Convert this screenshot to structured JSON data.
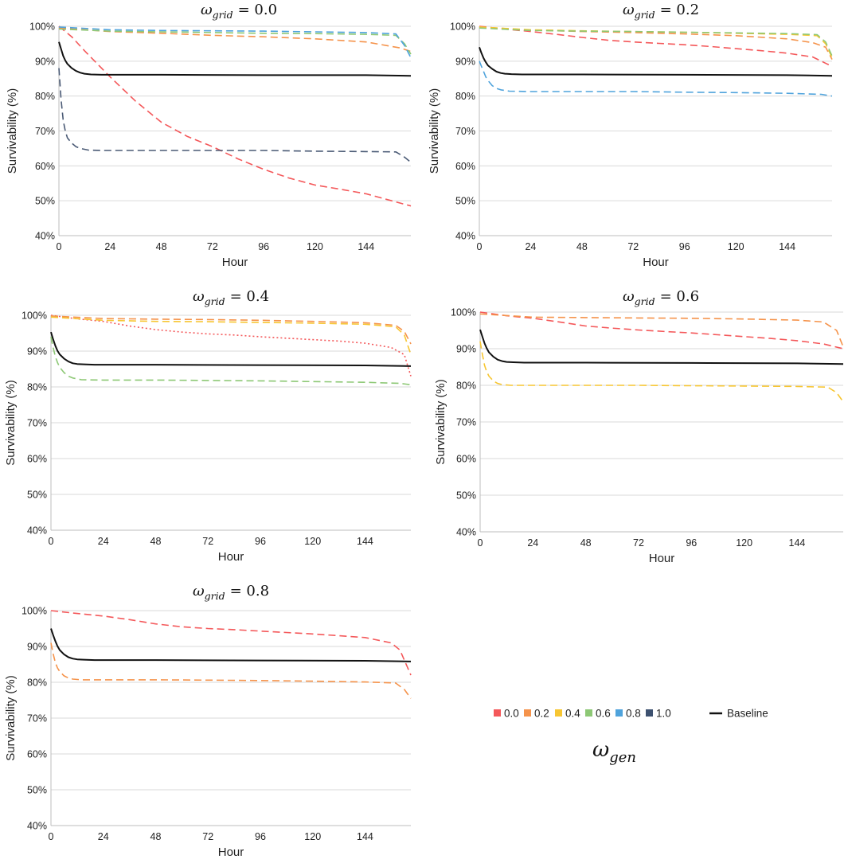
{
  "chart_data": [
    {
      "type": "line",
      "title": {
        "symbol": "ω",
        "subscript": "grid",
        "value": "= 0.0"
      },
      "xlabel": "Hour",
      "ylabel": "Survivability (%)",
      "xticks": [
        0,
        24,
        48,
        72,
        96,
        120,
        144
      ],
      "xlim": [
        0,
        165
      ],
      "yticks": [
        "40%",
        "50%",
        "60%",
        "70%",
        "80%",
        "90%",
        "100%"
      ],
      "ylim": [
        40,
        100
      ],
      "series": [
        {
          "name": "0.0",
          "color": "#f4585a",
          "style": "dashed",
          "x": [
            0,
            6,
            12,
            24,
            36,
            48,
            60,
            72,
            84,
            96,
            108,
            120,
            132,
            144,
            156,
            165
          ],
          "y": [
            100,
            97,
            93,
            85.5,
            78.5,
            72.5,
            68.5,
            65.5,
            62,
            59,
            56.5,
            54.5,
            53.3,
            52,
            50,
            48.5
          ]
        },
        {
          "name": "0.2",
          "color": "#f5934b",
          "style": "dashed",
          "x": [
            0,
            24,
            48,
            72,
            96,
            120,
            144,
            160,
            165
          ],
          "y": [
            99.5,
            98.5,
            98,
            97.4,
            97,
            96.4,
            95.5,
            93.8,
            92.8
          ]
        },
        {
          "name": "0.6",
          "color": "#8dc875",
          "style": "dashed",
          "x": [
            0,
            24,
            48,
            72,
            96,
            120,
            144,
            158,
            162,
            165
          ],
          "y": [
            99.2,
            98.6,
            98.4,
            98.2,
            98,
            97.9,
            97.7,
            97.4,
            95,
            92
          ]
        },
        {
          "name": "0.8",
          "color": "#4fa3dc",
          "style": "dashed",
          "x": [
            0,
            24,
            48,
            72,
            96,
            120,
            144,
            158,
            162,
            165
          ],
          "y": [
            99.8,
            99,
            98.8,
            98.7,
            98.6,
            98.4,
            98.2,
            97.8,
            94.5,
            91
          ]
        },
        {
          "name": "1.0",
          "color": "#4a5a75",
          "style": "dashed",
          "x": [
            0,
            1,
            2,
            3,
            4,
            6,
            8,
            10,
            14,
            20,
            48,
            96,
            120,
            144,
            158,
            162,
            165
          ],
          "y": [
            88,
            79,
            73,
            70,
            68,
            66.5,
            65.5,
            65,
            64.5,
            64.4,
            64.4,
            64.4,
            64.2,
            64.1,
            64,
            62.5,
            61
          ]
        },
        {
          "name": "Baseline",
          "color": "#111111",
          "style": "solid",
          "x": [
            0,
            1,
            2,
            3,
            4,
            6,
            8,
            10,
            12,
            15,
            20,
            48,
            96,
            144,
            165
          ],
          "y": [
            95.5,
            93.5,
            91.5,
            90.2,
            89.2,
            88,
            87.2,
            86.7,
            86.4,
            86.2,
            86.1,
            86.1,
            86,
            86,
            85.8
          ]
        }
      ]
    },
    {
      "type": "line",
      "title": {
        "symbol": "ω",
        "subscript": "grid",
        "value": "= 0.2"
      },
      "xlabel": "Hour",
      "ylabel": "Survivability (%)",
      "xticks": [
        0,
        24,
        48,
        72,
        96,
        120,
        144
      ],
      "xlim": [
        0,
        165
      ],
      "yticks": [
        "40%",
        "50%",
        "60%",
        "70%",
        "80%",
        "90%",
        "100%"
      ],
      "ylim": [
        40,
        100
      ],
      "series": [
        {
          "name": "0.0",
          "color": "#f4585a",
          "style": "dashed",
          "x": [
            0,
            12,
            24,
            36,
            48,
            60,
            72,
            84,
            96,
            108,
            120,
            132,
            144,
            156,
            165
          ],
          "y": [
            100,
            99.2,
            98.5,
            97.7,
            96.8,
            96,
            95.5,
            95.1,
            94.7,
            94.2,
            93.6,
            93,
            92.3,
            91.2,
            88.5
          ]
        },
        {
          "name": "0.2",
          "color": "#f5934b",
          "style": "dashed",
          "x": [
            0,
            24,
            48,
            72,
            96,
            120,
            144,
            156,
            162,
            165
          ],
          "y": [
            99.8,
            98.9,
            98.5,
            98.2,
            97.8,
            97.3,
            96.4,
            95.3,
            94,
            90.5
          ]
        },
        {
          "name": "0.4",
          "color": "#f7c632",
          "style": "dashed",
          "x": [
            0,
            24,
            48,
            72,
            96,
            120,
            144,
            158,
            162,
            165
          ],
          "y": [
            99.8,
            99,
            98.7,
            98.5,
            98.3,
            98,
            97.7,
            97.3,
            95,
            91
          ]
        },
        {
          "name": "0.6",
          "color": "#8dc875",
          "style": "dashed",
          "x": [
            0,
            24,
            48,
            72,
            96,
            120,
            144,
            158,
            162,
            165
          ],
          "y": [
            99.5,
            98.8,
            98.6,
            98.5,
            98.3,
            98.1,
            97.9,
            97.6,
            95.5,
            91.5
          ]
        },
        {
          "name": "0.8",
          "color": "#4fa3dc",
          "style": "dashed",
          "x": [
            0,
            1,
            2,
            3,
            4,
            6,
            8,
            10,
            14,
            24,
            48,
            72,
            96,
            120,
            144,
            160,
            165
          ],
          "y": [
            90,
            88.5,
            87,
            85.5,
            84.5,
            83,
            82.2,
            81.8,
            81.4,
            81.3,
            81.3,
            81.3,
            81.1,
            81,
            80.8,
            80.5,
            80
          ]
        },
        {
          "name": "Baseline",
          "color": "#111111",
          "style": "solid",
          "x": [
            0,
            1,
            2,
            3,
            4,
            6,
            8,
            10,
            12,
            15,
            20,
            48,
            96,
            144,
            165
          ],
          "y": [
            94,
            92.3,
            90.8,
            89.7,
            88.8,
            87.8,
            87,
            86.6,
            86.4,
            86.3,
            86.2,
            86.2,
            86.1,
            86,
            85.8
          ]
        }
      ]
    },
    {
      "type": "line",
      "title": {
        "symbol": "ω",
        "subscript": "grid",
        "value": "= 0.4"
      },
      "xlabel": "Hour",
      "ylabel": "Survivability (%)",
      "xticks": [
        0,
        24,
        48,
        72,
        96,
        120,
        144
      ],
      "xlim": [
        0,
        165
      ],
      "yticks": [
        "40%",
        "50%",
        "60%",
        "70%",
        "80%",
        "90%",
        "100%"
      ],
      "ylim": [
        40,
        100
      ],
      "series": [
        {
          "name": "0.0",
          "color": "#f4585a",
          "style": "dotted",
          "x": [
            0,
            12,
            24,
            36,
            48,
            60,
            72,
            84,
            96,
            108,
            120,
            132,
            144,
            156,
            162,
            165
          ],
          "y": [
            100,
            99,
            98.3,
            97,
            96,
            95.3,
            94.8,
            94.5,
            94,
            93.6,
            93.2,
            92.8,
            92.2,
            91,
            89,
            83
          ]
        },
        {
          "name": "0.2",
          "color": "#f5934b",
          "style": "dashed",
          "x": [
            0,
            24,
            48,
            72,
            96,
            120,
            144,
            158,
            162,
            165
          ],
          "y": [
            99.8,
            99.1,
            98.9,
            98.8,
            98.6,
            98.3,
            97.9,
            97.2,
            95.5,
            92
          ]
        },
        {
          "name": "0.4",
          "color": "#f7c632",
          "style": "dashed",
          "x": [
            0,
            24,
            48,
            72,
            96,
            120,
            144,
            158,
            162,
            165
          ],
          "y": [
            99.5,
            98.6,
            98.3,
            98.2,
            98,
            97.8,
            97.5,
            96.8,
            94.5,
            89
          ]
        },
        {
          "name": "0.6",
          "color": "#8dc875",
          "style": "dashed",
          "x": [
            0,
            1,
            2,
            3,
            4,
            6,
            8,
            10,
            14,
            24,
            48,
            72,
            96,
            120,
            144,
            160,
            165
          ],
          "y": [
            94,
            91,
            88.5,
            86.8,
            85.5,
            84,
            83,
            82.5,
            82,
            81.9,
            81.9,
            81.8,
            81.7,
            81.5,
            81.3,
            81,
            80.6
          ]
        },
        {
          "name": "Baseline",
          "color": "#111111",
          "style": "solid",
          "x": [
            0,
            1,
            2,
            3,
            4,
            6,
            8,
            10,
            12,
            15,
            20,
            48,
            96,
            144,
            165
          ],
          "y": [
            95.3,
            93.3,
            91.5,
            90.1,
            89.1,
            87.9,
            87.1,
            86.6,
            86.4,
            86.3,
            86.2,
            86.2,
            86.1,
            86,
            85.8
          ]
        }
      ]
    },
    {
      "type": "line",
      "title": {
        "symbol": "ω",
        "subscript": "grid",
        "value": "= 0.6"
      },
      "xlabel": "Hour",
      "ylabel": "Survivability (%)",
      "xticks": [
        0,
        24,
        48,
        72,
        96,
        120,
        144
      ],
      "xlim": [
        0,
        165
      ],
      "yticks": [
        "40%",
        "50%",
        "60%",
        "70%",
        "80%",
        "90%",
        "100%"
      ],
      "ylim": [
        40,
        100
      ],
      "series": [
        {
          "name": "0.0",
          "color": "#f4585a",
          "style": "dashed",
          "x": [
            0,
            12,
            24,
            36,
            48,
            60,
            72,
            84,
            96,
            108,
            120,
            132,
            144,
            156,
            165
          ],
          "y": [
            100,
            99,
            98.3,
            97.3,
            96.2,
            95.6,
            95.1,
            94.7,
            94.3,
            93.8,
            93.3,
            92.8,
            92.2,
            91.3,
            90
          ]
        },
        {
          "name": "0.2",
          "color": "#f5934b",
          "style": "dashed",
          "x": [
            0,
            24,
            48,
            72,
            96,
            120,
            144,
            156,
            162,
            165
          ],
          "y": [
            99.5,
            98.6,
            98.5,
            98.4,
            98.3,
            98.1,
            97.8,
            97.3,
            95,
            90.5
          ]
        },
        {
          "name": "0.4",
          "color": "#f7c632",
          "style": "dashed",
          "x": [
            0,
            1,
            2,
            3,
            4,
            6,
            8,
            10,
            14,
            24,
            48,
            72,
            96,
            120,
            144,
            158,
            162,
            165
          ],
          "y": [
            92,
            88.5,
            85.5,
            83.7,
            82.5,
            81.2,
            80.5,
            80.2,
            80,
            80,
            80,
            80,
            79.9,
            79.8,
            79.7,
            79.5,
            78,
            75.5
          ]
        },
        {
          "name": "Baseline",
          "color": "#111111",
          "style": "solid",
          "x": [
            0,
            1,
            2,
            3,
            4,
            6,
            8,
            10,
            12,
            15,
            20,
            48,
            96,
            144,
            165
          ],
          "y": [
            95.2,
            93.3,
            91.5,
            90.1,
            89,
            87.8,
            87,
            86.6,
            86.4,
            86.3,
            86.2,
            86.2,
            86.1,
            86,
            85.8
          ]
        }
      ]
    },
    {
      "type": "line",
      "title": {
        "symbol": "ω",
        "subscript": "grid",
        "value": "= 0.8"
      },
      "xlabel": "Hour",
      "ylabel": "Survivability (%)",
      "xticks": [
        0,
        24,
        48,
        72,
        96,
        120,
        144
      ],
      "xlim": [
        0,
        165
      ],
      "yticks": [
        "40%",
        "50%",
        "60%",
        "70%",
        "80%",
        "90%",
        "100%"
      ],
      "ylim": [
        40,
        100
      ],
      "series": [
        {
          "name": "0.0",
          "color": "#f4585a",
          "style": "dashed",
          "x": [
            0,
            12,
            24,
            36,
            48,
            60,
            72,
            84,
            96,
            108,
            120,
            132,
            144,
            156,
            160,
            165
          ],
          "y": [
            100,
            99.2,
            98.5,
            97.5,
            96.3,
            95.5,
            95,
            94.7,
            94.3,
            93.9,
            93.5,
            93,
            92.5,
            91,
            89,
            82
          ]
        },
        {
          "name": "0.2",
          "color": "#f5934b",
          "style": "dashed",
          "x": [
            0,
            1,
            2,
            3,
            4,
            6,
            8,
            10,
            14,
            24,
            48,
            72,
            96,
            120,
            144,
            158,
            162,
            165
          ],
          "y": [
            91,
            88,
            85.5,
            84,
            83,
            81.8,
            81.2,
            80.9,
            80.7,
            80.7,
            80.7,
            80.6,
            80.5,
            80.3,
            80.1,
            79.8,
            78,
            75.5
          ]
        },
        {
          "name": "Baseline",
          "color": "#111111",
          "style": "solid",
          "x": [
            0,
            1,
            2,
            3,
            4,
            6,
            8,
            10,
            12,
            15,
            20,
            48,
            96,
            144,
            165
          ],
          "y": [
            95,
            93.2,
            91.5,
            90.1,
            89,
            87.8,
            87,
            86.6,
            86.4,
            86.3,
            86.2,
            86.2,
            86.1,
            86,
            85.8
          ]
        }
      ]
    }
  ],
  "legend": {
    "items": [
      {
        "label": "0.0",
        "color": "#f4585a",
        "marker": "square"
      },
      {
        "label": "0.2",
        "color": "#f5934b",
        "marker": "square"
      },
      {
        "label": "0.4",
        "color": "#f7c632",
        "marker": "square"
      },
      {
        "label": "0.6",
        "color": "#8dc875",
        "marker": "square"
      },
      {
        "label": "0.8",
        "color": "#4fa3dc",
        "marker": "square"
      },
      {
        "label": "1.0",
        "color": "#3d5170",
        "marker": "square"
      },
      {
        "label": "Baseline",
        "color": "#111111",
        "marker": "line"
      }
    ],
    "caption": {
      "symbol": "ω",
      "subscript": "gen"
    }
  }
}
